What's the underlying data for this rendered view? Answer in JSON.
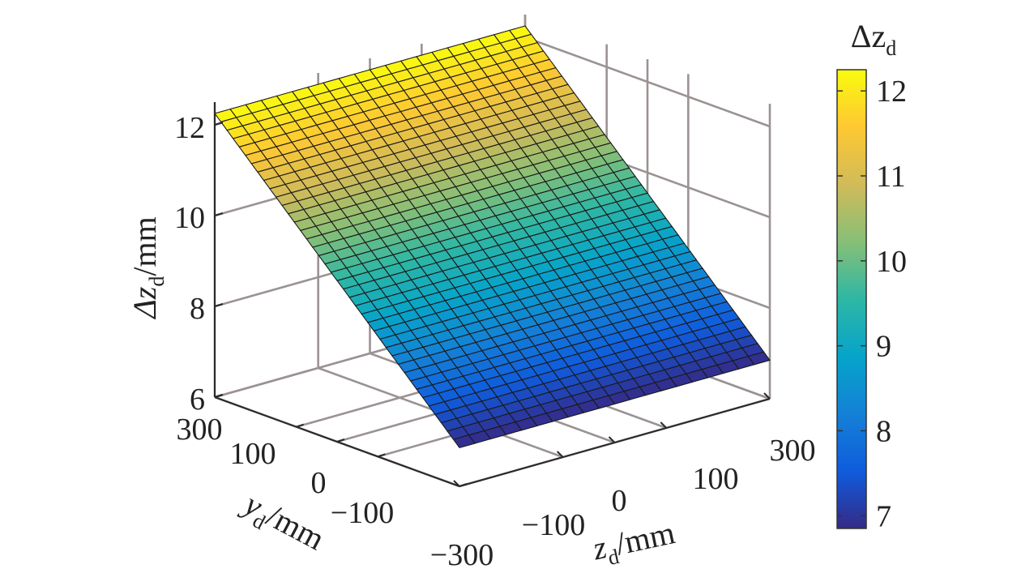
{
  "chart_data": {
    "type": "surface",
    "title": "",
    "xlabel": {
      "main": "z",
      "sub": "d",
      "unit": "/mm"
    },
    "ylabel": {
      "main": "y",
      "sub": "d",
      "unit": "/mm"
    },
    "zlabel": {
      "main": "Δz",
      "sub": "d",
      "unit": "/mm"
    },
    "colorbar_title": {
      "main": "Δz",
      "sub": "d"
    },
    "x_range": [
      -300,
      300
    ],
    "y_range": [
      -300,
      300
    ],
    "z_range": [
      6,
      12.5
    ],
    "x_ticks": [
      "−100",
      "0",
      "100",
      "300"
    ],
    "y_ticks": [
      "300",
      "100",
      "0",
      "−100",
      "−300"
    ],
    "z_ticks": [
      "6",
      "8",
      "10",
      "12"
    ],
    "colorbar_range": [
      6.85,
      12.25
    ],
    "colorbar_ticks": [
      "7",
      "8",
      "9",
      "10",
      "11",
      "12"
    ],
    "colormap": "parula",
    "grid": true,
    "mesh": {
      "rows": 40,
      "cols": 20
    },
    "surface_corners": {
      "x_-300_y_-300": 6.85,
      "x_-300_y_300": 12.25,
      "x_300_y_-300": 6.85,
      "x_300_y_300": 12.25
    },
    "dependence": "linear in y_d, approximately constant in z_d"
  }
}
